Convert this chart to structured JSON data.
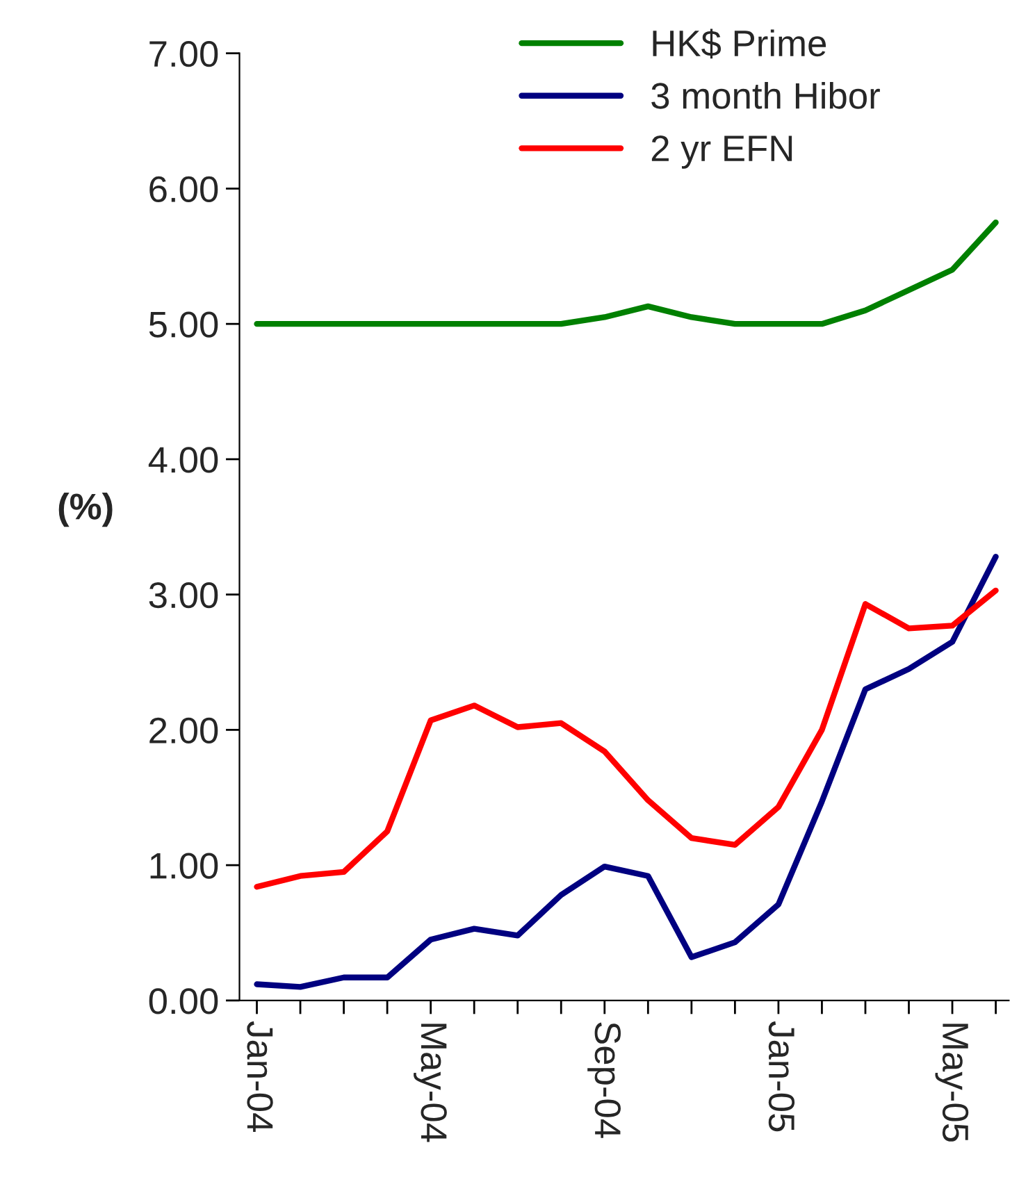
{
  "chart_data": {
    "type": "line",
    "categories": [
      "Jan-04",
      null,
      null,
      null,
      "May-04",
      null,
      null,
      null,
      "Sep-04",
      null,
      null,
      null,
      "Jan-05",
      null,
      null,
      null,
      "May-05",
      null
    ],
    "series": [
      {
        "name": "HK$ Prime",
        "color": "#008000",
        "values": [
          5.0,
          5.0,
          5.0,
          5.0,
          5.0,
          5.0,
          5.0,
          5.0,
          5.05,
          5.13,
          5.05,
          5.0,
          5.0,
          5.0,
          5.1,
          5.25,
          5.4,
          5.75
        ]
      },
      {
        "name": "3 month Hibor",
        "color": "#000080",
        "values": [
          0.12,
          0.1,
          0.17,
          0.17,
          0.45,
          0.53,
          0.48,
          0.78,
          0.99,
          0.92,
          0.32,
          0.43,
          0.71,
          1.47,
          2.3,
          2.45,
          2.65,
          3.28
        ]
      },
      {
        "name": "2 yr EFN",
        "color": "#ff0000",
        "values": [
          0.84,
          0.92,
          0.95,
          1.25,
          2.07,
          2.18,
          2.02,
          2.05,
          1.84,
          1.48,
          1.2,
          1.15,
          1.43,
          2.0,
          2.93,
          2.75,
          2.77,
          3.03
        ]
      }
    ],
    "ylabel": "(%)",
    "ylim": [
      0,
      7
    ],
    "yticks": [
      {
        "value": 0,
        "label": "0.00"
      },
      {
        "value": 1,
        "label": "1.00"
      },
      {
        "value": 2,
        "label": "2.00"
      },
      {
        "value": 3,
        "label": "3.00"
      },
      {
        "value": 4,
        "label": "4.00"
      },
      {
        "value": 5,
        "label": "5.00"
      },
      {
        "value": 6,
        "label": "6.00"
      },
      {
        "value": 7,
        "label": "7.00"
      }
    ],
    "grid": false,
    "legend": "top",
    "marker": "none",
    "line_style": "solid"
  }
}
